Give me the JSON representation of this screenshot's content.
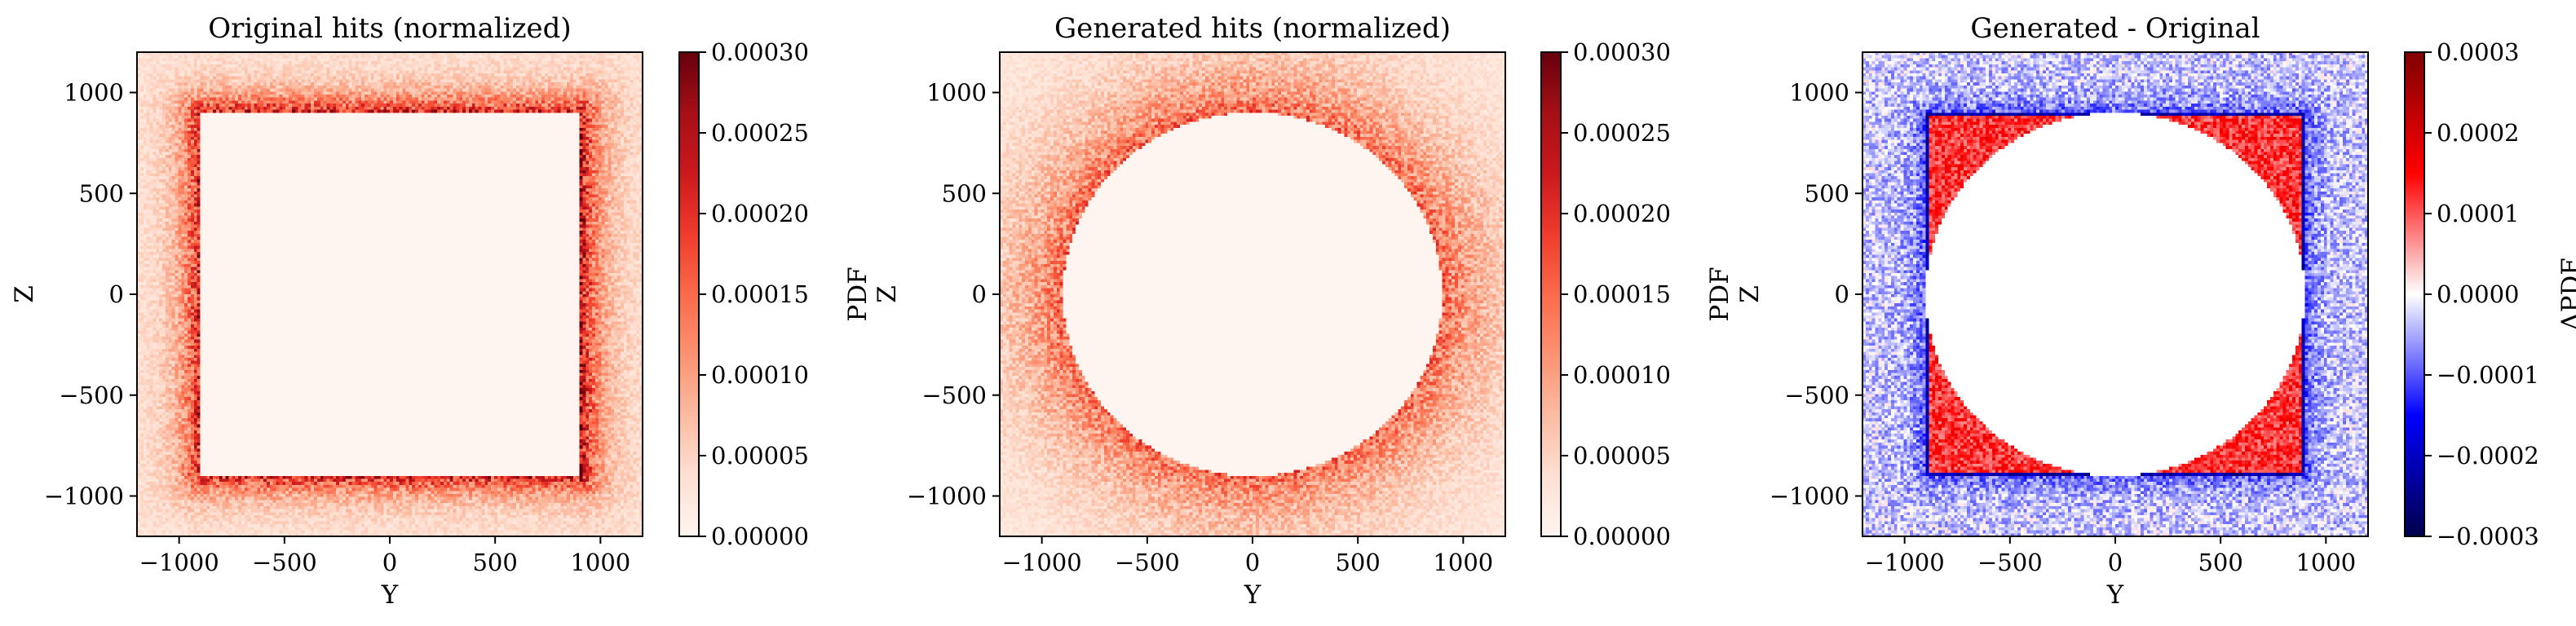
{
  "colors": {
    "reds_low": "#fff5f0",
    "reds_high": "#67000d",
    "diff_low": "#000066",
    "diff_mid": "#ffffff",
    "diff_high": "#7f0000"
  },
  "chart_data": [
    {
      "type": "heatmap",
      "title": "Original hits (normalized)",
      "xlabel": "Y",
      "ylabel": "Z",
      "xlim": [
        -1200,
        1200
      ],
      "ylim": [
        -1200,
        1200
      ],
      "xticks": [
        -1000,
        -500,
        0,
        500,
        1000
      ],
      "yticks": [
        -1000,
        -500,
        0,
        500,
        1000
      ],
      "xtick_labels": [
        "−1000",
        "−500",
        "0",
        "500",
        "1000"
      ],
      "ytick_labels": [
        "−1000",
        "−500",
        "0",
        "500",
        "1000"
      ],
      "colormap": "Reds",
      "colorbar_label": "PDF",
      "vmin": 0.0,
      "vmax": 0.0003,
      "colorbar_ticks": [
        0.0,
        5e-05,
        0.0001,
        0.00015,
        0.0002,
        0.00025,
        0.0003
      ],
      "colorbar_tick_labels": [
        "0.00000",
        "0.00005",
        "0.00010",
        "0.00015",
        "0.00020",
        "0.00025",
        "0.00030"
      ],
      "pattern": {
        "shape": "square_hole",
        "hole_extent": [
          -900,
          900,
          -900,
          900
        ],
        "hole_value": 0.0,
        "ring_peak_value": 0.00022,
        "outer_value": 3e-05
      }
    },
    {
      "type": "heatmap",
      "title": "Generated hits (normalized)",
      "xlabel": "Y",
      "ylabel": "Z",
      "xlim": [
        -1200,
        1200
      ],
      "ylim": [
        -1200,
        1200
      ],
      "xticks": [
        -1000,
        -500,
        0,
        500,
        1000
      ],
      "yticks": [
        -1000,
        -500,
        0,
        500,
        1000
      ],
      "xtick_labels": [
        "−1000",
        "−500",
        "0",
        "500",
        "1000"
      ],
      "ytick_labels": [
        "−1000",
        "−500",
        "0",
        "500",
        "1000"
      ],
      "colormap": "Reds",
      "colorbar_label": "PDF",
      "vmin": 0.0,
      "vmax": 0.0003,
      "colorbar_ticks": [
        0.0,
        5e-05,
        0.0001,
        0.00015,
        0.0002,
        0.00025,
        0.0003
      ],
      "colorbar_tick_labels": [
        "0.00000",
        "0.00005",
        "0.00010",
        "0.00015",
        "0.00020",
        "0.00025",
        "0.00030"
      ],
      "pattern": {
        "shape": "circular_hole",
        "hole_radius": 900,
        "hole_value": 0.0,
        "ring_peak_value": 0.00015,
        "outer_value": 2e-05
      }
    },
    {
      "type": "heatmap",
      "title": "Generated - Original",
      "xlabel": "Y",
      "ylabel": "Z",
      "xlim": [
        -1200,
        1200
      ],
      "ylim": [
        -1200,
        1200
      ],
      "xticks": [
        -1000,
        -500,
        0,
        500,
        1000
      ],
      "yticks": [
        -1000,
        -500,
        0,
        500,
        1000
      ],
      "xtick_labels": [
        "−1000",
        "−500",
        "0",
        "500",
        "1000"
      ],
      "ytick_labels": [
        "−1000",
        "−500",
        "0",
        "500",
        "1000"
      ],
      "colormap": "seismic",
      "colorbar_label": "ΔPDF",
      "vmin": -0.0003,
      "vmax": 0.0003,
      "colorbar_ticks": [
        -0.0003,
        -0.0002,
        -0.0001,
        0.0,
        0.0001,
        0.0002,
        0.0003
      ],
      "colorbar_tick_labels": [
        "−0.0003",
        "−0.0002",
        "−0.0001",
        "0.0000",
        "0.0001",
        "0.0002",
        "0.0003"
      ],
      "pattern": {
        "shape": "difference",
        "inner_circle_radius": 900,
        "square_extent": [
          -900,
          900,
          -900,
          900
        ],
        "corner_value": 0.00012,
        "square_edge_value": -0.00022,
        "outer_value": -3e-05
      }
    }
  ]
}
